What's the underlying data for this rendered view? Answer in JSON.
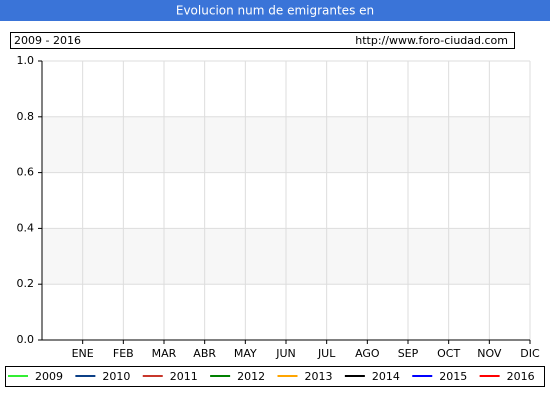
{
  "chart_data": {
    "type": "line",
    "title": "Evolucion num de emigrantes en",
    "subtitle": "2009 - 2016",
    "source": "http://www.foro-ciudad.com",
    "categories": [
      "ENE",
      "FEB",
      "MAR",
      "ABR",
      "MAY",
      "JUN",
      "JUL",
      "AGO",
      "SEP",
      "OCT",
      "NOV",
      "DIC"
    ],
    "series": [
      {
        "name": "2009",
        "color": "#33ee33",
        "values": [
          null,
          null,
          null,
          null,
          null,
          null,
          null,
          null,
          null,
          null,
          null,
          null
        ]
      },
      {
        "name": "2010",
        "color": "#0b3f86",
        "values": [
          null,
          null,
          null,
          null,
          null,
          null,
          null,
          null,
          null,
          null,
          null,
          null
        ]
      },
      {
        "name": "2011",
        "color": "#c8372b",
        "values": [
          null,
          null,
          null,
          null,
          null,
          null,
          null,
          null,
          null,
          null,
          null,
          null
        ]
      },
      {
        "name": "2012",
        "color": "#008000",
        "values": [
          null,
          null,
          null,
          null,
          null,
          null,
          null,
          null,
          null,
          null,
          null,
          null
        ]
      },
      {
        "name": "2013",
        "color": "#ffa500",
        "values": [
          null,
          null,
          null,
          null,
          null,
          null,
          null,
          null,
          null,
          null,
          null,
          null
        ]
      },
      {
        "name": "2014",
        "color": "#000000",
        "values": [
          null,
          null,
          null,
          null,
          null,
          null,
          null,
          null,
          null,
          null,
          null,
          null
        ]
      },
      {
        "name": "2015",
        "color": "#0000ff",
        "values": [
          null,
          null,
          null,
          null,
          null,
          null,
          null,
          null,
          null,
          null,
          null,
          null
        ]
      },
      {
        "name": "2016",
        "color": "#ff0000",
        "values": [
          null,
          null,
          null,
          null,
          null,
          null,
          null,
          null,
          null,
          null,
          null,
          null
        ]
      }
    ],
    "ylim": [
      0,
      1
    ],
    "yticks": [
      {
        "value": 0,
        "label": "0.0"
      },
      0.2,
      0.4,
      0.6,
      0.8,
      {
        "value": 1,
        "label": "1.0"
      }
    ],
    "grid": true
  }
}
